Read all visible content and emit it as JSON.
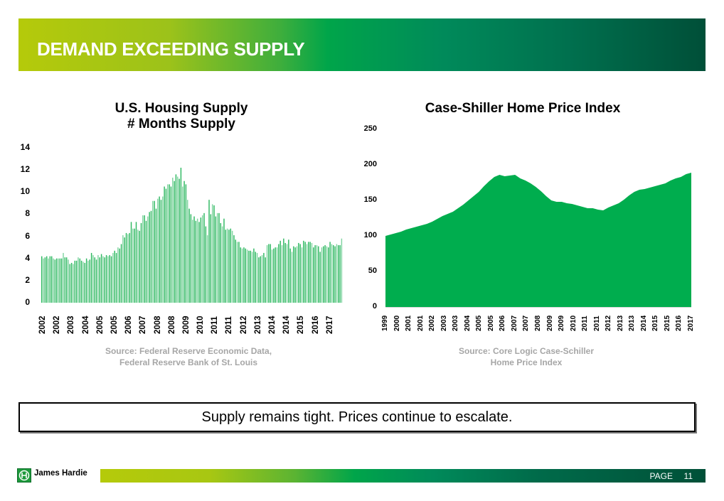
{
  "header": {
    "title": "DEMAND EXCEEDING SUPPLY"
  },
  "footer": {
    "company": "James Hardie",
    "page_label": "PAGE",
    "page_number": "11"
  },
  "callout": {
    "text": "Supply remains tight. Prices continue to escalate."
  },
  "colors": {
    "bar": "#2db860",
    "bar_light": "#7fd4a0",
    "area": "#00ad4e"
  },
  "chart_data": [
    {
      "type": "bar",
      "title_line1": "U.S. Housing Supply",
      "title_line2": "# Months Supply",
      "source_line1": "Source: Federal Reserve Economic Data,",
      "source_line2": "Federal Reserve Bank of St. Louis",
      "ylim": [
        0,
        14
      ],
      "yticks": [
        "0",
        "2",
        "4",
        "6",
        "8",
        "10",
        "12",
        "14"
      ],
      "xtick_labels": [
        "2002",
        "2002",
        "2003",
        "2004",
        "2005",
        "2005",
        "2006",
        "2007",
        "2008",
        "2008",
        "2009",
        "2010",
        "2011",
        "2011",
        "2012",
        "2013",
        "2014",
        "2014",
        "2015",
        "2016",
        "2017"
      ],
      "grid": false,
      "x_range": [
        "2002-01",
        "2017-08"
      ],
      "values": [
        4.2,
        4.0,
        4.1,
        4.2,
        4.0,
        4.2,
        4.2,
        4.0,
        3.9,
        4.0,
        4.0,
        4.0,
        4.0,
        4.5,
        4.1,
        4.1,
        3.9,
        3.5,
        3.6,
        3.5,
        3.8,
        3.8,
        4.1,
        4.0,
        3.8,
        3.7,
        3.6,
        4.0,
        3.8,
        3.9,
        4.5,
        4.3,
        4.1,
        3.9,
        4.3,
        4.1,
        4.4,
        4.2,
        4.1,
        4.3,
        4.2,
        4.3,
        4.2,
        4.5,
        4.7,
        4.5,
        5.0,
        4.9,
        5.3,
        6.1,
        5.9,
        6.3,
        6.2,
        6.3,
        7.3,
        6.7,
        6.7,
        7.3,
        6.6,
        6.5,
        7.2,
        7.9,
        7.9,
        7.4,
        7.8,
        8.2,
        8.3,
        9.2,
        9.2,
        8.5,
        9.4,
        9.6,
        9.3,
        9.6,
        10.5,
        10.3,
        10.7,
        10.7,
        10.5,
        11.3,
        11.0,
        11.6,
        11.4,
        11.2,
        12.2,
        10.5,
        11.0,
        10.7,
        9.3,
        8.5,
        8.0,
        7.5,
        7.8,
        7.4,
        7.6,
        7.3,
        7.7,
        7.9,
        8.1,
        6.9,
        6.1,
        9.3,
        8.0,
        8.9,
        8.8,
        7.8,
        8.1,
        8.1,
        7.2,
        6.9,
        7.6,
        6.6,
        6.7,
        6.6,
        6.7,
        6.5,
        6.1,
        5.7,
        5.5,
        5.5,
        5.0,
        4.9,
        5.0,
        4.9,
        4.8,
        4.7,
        4.7,
        4.6,
        4.9,
        4.6,
        4.5,
        4.1,
        4.2,
        4.3,
        4.5,
        4.1,
        5.2,
        5.3,
        5.3,
        4.8,
        4.9,
        5.0,
        5.0,
        5.3,
        5.6,
        5.2,
        5.8,
        5.4,
        5.3,
        5.7,
        4.9,
        4.6,
        5.1,
        5.0,
        5.1,
        5.4,
        5.3,
        5.0,
        5.6,
        5.5,
        5.3,
        5.5,
        5.5,
        5.4,
        5.0,
        5.2,
        5.2,
        5.1,
        4.6,
        5.0,
        5.1,
        5.2,
        5.1,
        5.0,
        5.5,
        5.3,
        5.2,
        5.1,
        5.3,
        5.2,
        5.2,
        5.8
      ]
    },
    {
      "type": "area",
      "title": "Case-Shiller Home Price Index",
      "source_line1": "Source: Core Logic Case-Schiller",
      "source_line2": "Home Price Index",
      "ylim": [
        0,
        250
      ],
      "yticks": [
        "0",
        "50",
        "100",
        "150",
        "200",
        "250"
      ],
      "xtick_labels": [
        "1999",
        "2000",
        "2001",
        "2001",
        "2002",
        "2003",
        "2003",
        "2004",
        "2005",
        "2005",
        "2006",
        "2007",
        "2007",
        "2008",
        "2009",
        "2009",
        "2010",
        "2011",
        "2011",
        "2012",
        "2013",
        "2013",
        "2014",
        "2015",
        "2015",
        "2016",
        "2017"
      ],
      "grid": false,
      "x_range": [
        "1999-Q1",
        "2017-Q2"
      ],
      "values": [
        100,
        102,
        104,
        106,
        109,
        111,
        113,
        115,
        117,
        120,
        124,
        128,
        131,
        134,
        139,
        144,
        150,
        156,
        162,
        170,
        177,
        183,
        186,
        184,
        185,
        186,
        181,
        178,
        174,
        169,
        163,
        156,
        150,
        148,
        148,
        146,
        145,
        143,
        141,
        139,
        139,
        137,
        136,
        140,
        143,
        146,
        151,
        157,
        162,
        165,
        166,
        168,
        170,
        172,
        174,
        178,
        181,
        183,
        187,
        189
      ]
    }
  ]
}
